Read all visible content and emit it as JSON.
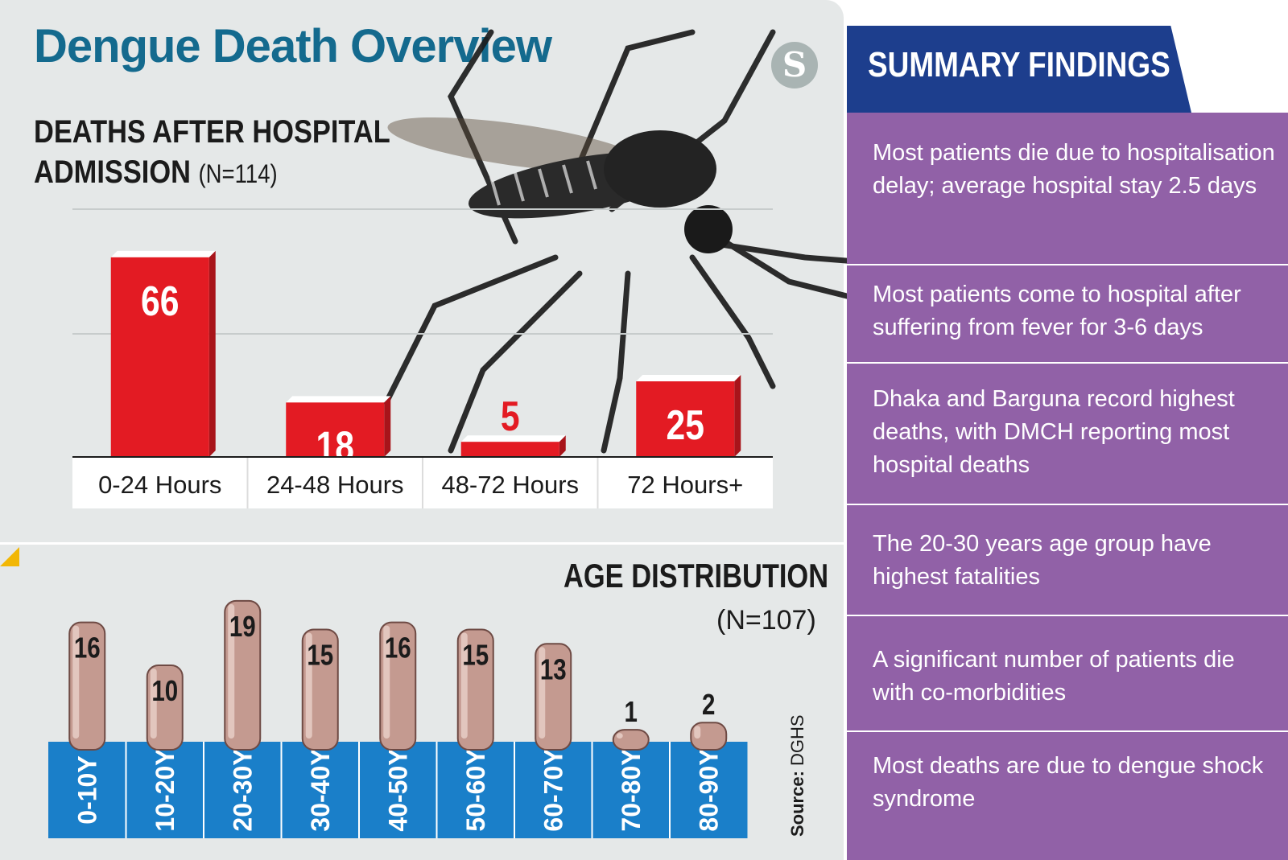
{
  "title": "Dengue Death Overview",
  "logo_text": "S",
  "colors": {
    "title": "#146a8e",
    "bar1": "#e31b23",
    "bar2": "#c49a90",
    "axis2": "#1a7fc9",
    "panel": "#9161a7",
    "header": "#1d3e8d"
  },
  "chart_data": [
    {
      "type": "bar",
      "title_line1": "DEATHS AFTER HOSPITAL",
      "title_line2": "ADMISSION",
      "n_label": "(N=114)",
      "categories": [
        "0-24 Hours",
        "24-48 Hours",
        "48-72 Hours",
        "72 Hours+"
      ],
      "values": [
        66,
        18,
        5,
        25
      ],
      "grid": true
    },
    {
      "type": "bar",
      "title": "AGE DISTRIBUTION",
      "n_label": "(N=107)",
      "categories": [
        "0-10Y",
        "10-20Y",
        "20-30Y",
        "30-40Y",
        "40-50Y",
        "50-60Y",
        "60-70Y",
        "70-80Y",
        "80-90Y"
      ],
      "values": [
        16,
        10,
        19,
        15,
        16,
        15,
        13,
        1,
        2
      ],
      "grid": false
    }
  ],
  "source": {
    "label": "Source:",
    "value": "DGHS"
  },
  "summary": {
    "heading": "SUMMARY FINDINGS",
    "findings": [
      "Most patients die due to hospitalisation delay; average hospital stay 2.5 days",
      "Most patients come to hospital after suffering from fever for 3-6 days",
      "Dhaka and Barguna record highest deaths, with DMCH reporting most hospital deaths",
      "The 20-30 years age group have highest fatalities",
      "A significant number of patients die with co-morbidities",
      "Most deaths are due to dengue shock syndrome"
    ]
  }
}
